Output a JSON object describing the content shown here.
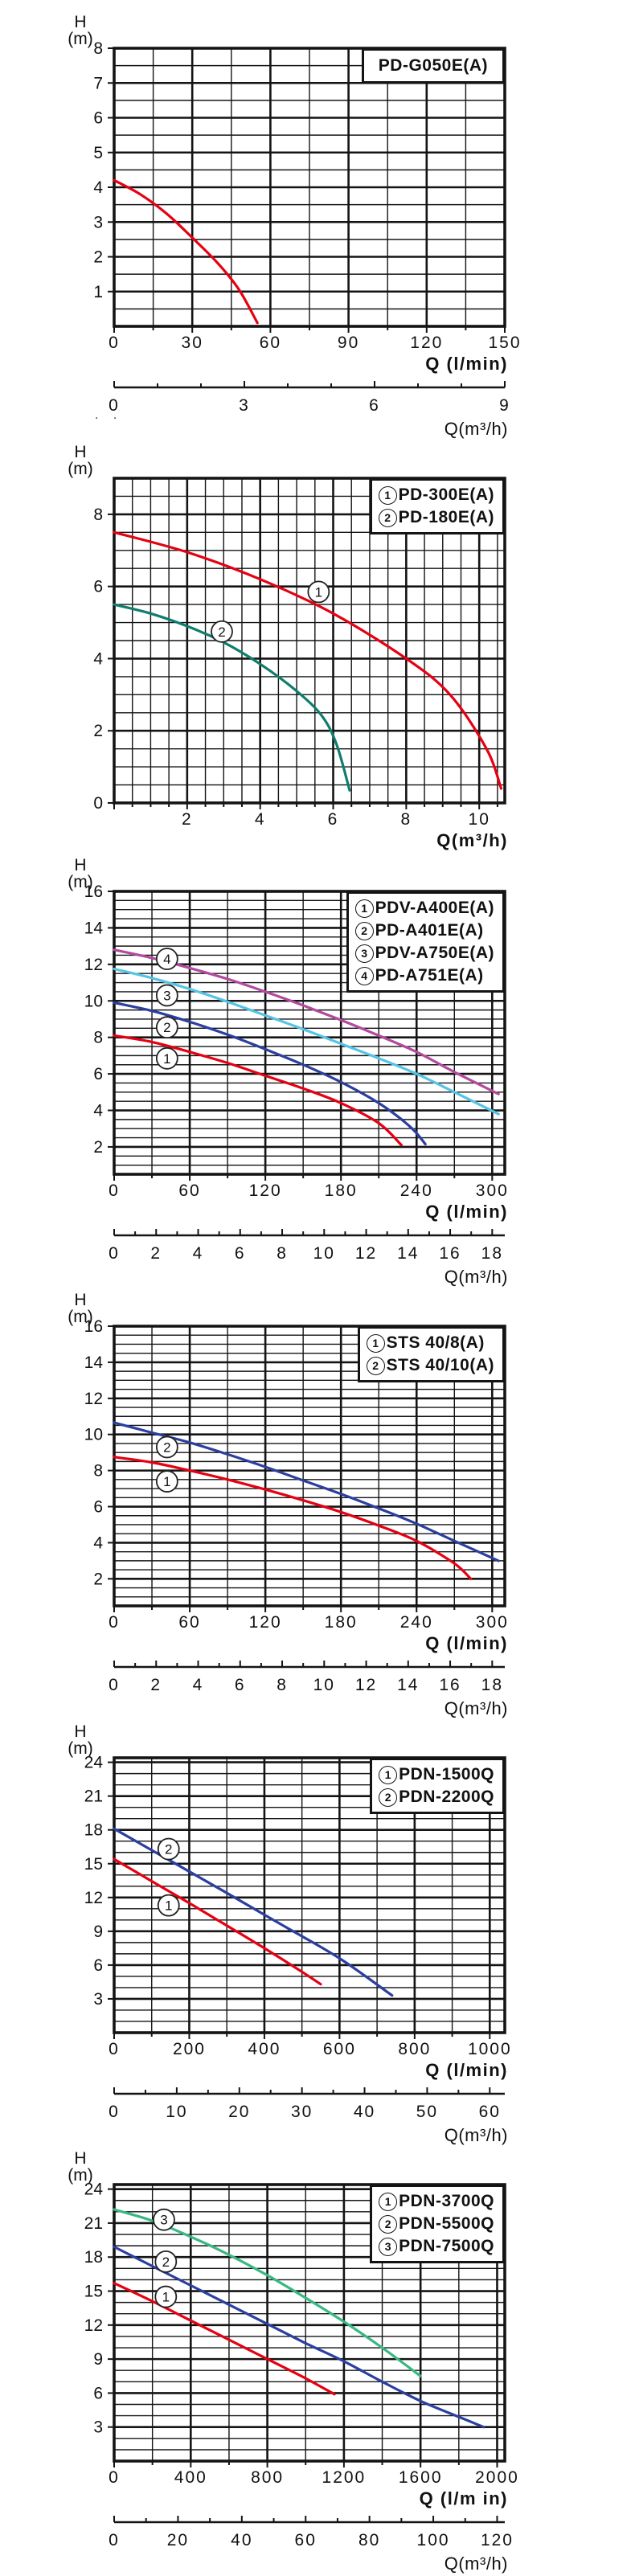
{
  "page": {
    "background": "#ffffff",
    "stray_marks": ". .",
    "grid_color": "#141414",
    "text_color": "#111111"
  },
  "chart_data": [
    {
      "type": "line",
      "id": "pd-g050e",
      "title": "PD-G050E(A)",
      "legend": null,
      "y_axis": {
        "name": "H",
        "unit": "(m)",
        "min": 0,
        "max": 8,
        "minor": 0.5,
        "labels": [
          8,
          7,
          6,
          5,
          4,
          3,
          2,
          1
        ]
      },
      "x_axis": {
        "name": "Q (l/min)",
        "min": 0,
        "max": 150,
        "minor": 15,
        "labels": [
          0,
          30,
          60,
          90,
          120,
          150
        ]
      },
      "x_axis2": {
        "name": "Q(m³/h)",
        "max": 9,
        "minor": 1,
        "labels": [
          0,
          3,
          6,
          9
        ]
      },
      "series": [
        {
          "label": "PD-G050E(A)",
          "color": "#e60012",
          "points": [
            [
              0,
              4.2
            ],
            [
              10,
              3.8
            ],
            [
              20,
              3.25
            ],
            [
              30,
              2.55
            ],
            [
              40,
              1.8
            ],
            [
              48,
              1.05
            ],
            [
              55,
              0.1
            ]
          ]
        }
      ],
      "curve_labels": []
    },
    {
      "type": "line",
      "id": "pd-300e-180e",
      "title": null,
      "legend": [
        {
          "num": "1",
          "label": "PD-300E(A)"
        },
        {
          "num": "2",
          "label": "PD-180E(A)"
        }
      ],
      "y_axis": {
        "name": "H",
        "unit": "(m)",
        "min": 0,
        "max": 9,
        "minor": 0.5,
        "labels": [
          8,
          6,
          4,
          2,
          0
        ]
      },
      "x_axis": {
        "name": "Q(m³/h)",
        "min": 0,
        "max": 10.7,
        "minor": 0.5,
        "labels": [
          2,
          4,
          6,
          8,
          10
        ]
      },
      "x_axis2": null,
      "series": [
        {
          "label": "PD-300E(A)",
          "color": "#e60012",
          "points": [
            [
              0,
              7.5
            ],
            [
              2,
              6.95
            ],
            [
              4,
              6.2
            ],
            [
              6,
              5.25
            ],
            [
              8,
              4.0
            ],
            [
              9.2,
              3.0
            ],
            [
              10.2,
              1.5
            ],
            [
              10.6,
              0.4
            ]
          ]
        },
        {
          "label": "PD-180E(A)",
          "color": "#0f7d6c",
          "points": [
            [
              0,
              5.5
            ],
            [
              1,
              5.25
            ],
            [
              2,
              4.9
            ],
            [
              3,
              4.45
            ],
            [
              4,
              3.85
            ],
            [
              5,
              3.1
            ],
            [
              5.7,
              2.4
            ],
            [
              6.1,
              1.6
            ],
            [
              6.45,
              0.35
            ]
          ]
        }
      ],
      "curve_labels": [
        {
          "num": "1",
          "x": 5.6,
          "y": 5.85
        },
        {
          "num": "2",
          "x": 2.95,
          "y": 4.75
        }
      ]
    },
    {
      "type": "line",
      "id": "pdv-a400-a751",
      "title": null,
      "legend": [
        {
          "num": "1",
          "label": "PDV-A400E(A)"
        },
        {
          "num": "2",
          "label": "PD-A401E(A)"
        },
        {
          "num": "3",
          "label": "PDV-A750E(A)"
        },
        {
          "num": "4",
          "label": "PD-A751E(A)"
        }
      ],
      "y_axis": {
        "name": "H",
        "unit": "(m)",
        "min": 0.5,
        "max": 16,
        "minor": 0.5,
        "labels": [
          16,
          14,
          12,
          10,
          8,
          6,
          4,
          2
        ]
      },
      "x_axis": {
        "name": "Q (l/min)",
        "min": 0,
        "max": 310,
        "minor": 30,
        "labels": [
          0,
          60,
          120,
          180,
          240,
          300
        ]
      },
      "x_axis2": {
        "name": "Q(m³/h)",
        "max": 18.6,
        "minor": 1,
        "labels": [
          0,
          2,
          4,
          6,
          8,
          10,
          12,
          14,
          16,
          18
        ]
      },
      "series": [
        {
          "label": "PDV-A400E(A)",
          "color": "#e60012",
          "points": [
            [
              0,
              8.1
            ],
            [
              30,
              7.75
            ],
            [
              60,
              7.2
            ],
            [
              90,
              6.6
            ],
            [
              120,
              5.9
            ],
            [
              150,
              5.2
            ],
            [
              180,
              4.4
            ],
            [
              210,
              3.3
            ],
            [
              228,
              2.1
            ]
          ]
        },
        {
          "label": "PD-A401E(A)",
          "color": "#2b3fa0",
          "points": [
            [
              0,
              9.9
            ],
            [
              30,
              9.45
            ],
            [
              60,
              8.85
            ],
            [
              90,
              8.15
            ],
            [
              120,
              7.35
            ],
            [
              150,
              6.5
            ],
            [
              180,
              5.55
            ],
            [
              210,
              4.4
            ],
            [
              235,
              3.1
            ],
            [
              247,
              2.15
            ]
          ]
        },
        {
          "label": "PDV-A750E(A)",
          "color": "#55c4e4",
          "points": [
            [
              0,
              11.75
            ],
            [
              30,
              11.25
            ],
            [
              60,
              10.65
            ],
            [
              90,
              9.95
            ],
            [
              120,
              9.2
            ],
            [
              150,
              8.45
            ],
            [
              180,
              7.65
            ],
            [
              210,
              6.85
            ],
            [
              240,
              6.0
            ],
            [
              270,
              5.0
            ],
            [
              305,
              3.8
            ]
          ]
        },
        {
          "label": "PD-A751E(A)",
          "color": "#b34a9f",
          "points": [
            [
              0,
              12.8
            ],
            [
              30,
              12.35
            ],
            [
              60,
              11.8
            ],
            [
              90,
              11.2
            ],
            [
              120,
              10.5
            ],
            [
              150,
              9.75
            ],
            [
              180,
              8.95
            ],
            [
              210,
              8.1
            ],
            [
              240,
              7.2
            ],
            [
              270,
              6.1
            ],
            [
              305,
              4.9
            ]
          ]
        }
      ],
      "curve_labels": [
        {
          "num": "1",
          "x": 42,
          "y": 6.85
        },
        {
          "num": "2",
          "x": 42,
          "y": 8.55
        },
        {
          "num": "3",
          "x": 42,
          "y": 10.3
        },
        {
          "num": "4",
          "x": 42,
          "y": 12.3
        }
      ]
    },
    {
      "type": "line",
      "id": "sts-40",
      "title": null,
      "legend": [
        {
          "num": "1",
          "label": "STS 40/8(A)"
        },
        {
          "num": "2",
          "label": "STS 40/10(A)"
        }
      ],
      "y_axis": {
        "name": "H",
        "unit": "(m)",
        "min": 0.5,
        "max": 16,
        "minor": 0.5,
        "labels": [
          16,
          14,
          12,
          10,
          8,
          6,
          4,
          2
        ]
      },
      "x_axis": {
        "name": "Q (l/min)",
        "min": 0,
        "max": 310,
        "minor": 30,
        "labels": [
          0,
          60,
          120,
          180,
          240,
          300
        ]
      },
      "x_axis2": {
        "name": "Q(m³/h)",
        "max": 18.6,
        "minor": 1,
        "labels": [
          0,
          2,
          4,
          6,
          8,
          10,
          12,
          14,
          16,
          18
        ]
      },
      "series": [
        {
          "label": "STS 40/8(A)",
          "color": "#e60012",
          "points": [
            [
              0,
              8.75
            ],
            [
              30,
              8.45
            ],
            [
              60,
              8.0
            ],
            [
              90,
              7.5
            ],
            [
              120,
              6.95
            ],
            [
              150,
              6.35
            ],
            [
              180,
              5.7
            ],
            [
              210,
              4.95
            ],
            [
              240,
              4.1
            ],
            [
              270,
              2.85
            ],
            [
              283,
              2.0
            ]
          ]
        },
        {
          "label": "STS 40/10(A)",
          "color": "#2b3fa0",
          "points": [
            [
              0,
              10.65
            ],
            [
              30,
              10.1
            ],
            [
              60,
              9.55
            ],
            [
              90,
              8.9
            ],
            [
              120,
              8.2
            ],
            [
              150,
              7.45
            ],
            [
              180,
              6.7
            ],
            [
              210,
              5.9
            ],
            [
              240,
              5.05
            ],
            [
              270,
              4.1
            ],
            [
              305,
              3.0
            ]
          ]
        }
      ],
      "curve_labels": [
        {
          "num": "1",
          "x": 42,
          "y": 7.4
        },
        {
          "num": "2",
          "x": 42,
          "y": 9.3
        }
      ]
    },
    {
      "type": "line",
      "id": "pdn-1500-2200",
      "title": null,
      "legend": [
        {
          "num": "1",
          "label": "PDN-1500Q"
        },
        {
          "num": "2",
          "label": "PDN-2200Q"
        }
      ],
      "y_axis": {
        "name": "H",
        "unit": "(m)",
        "min": 0,
        "max": 24.4,
        "minor": 1,
        "labels": [
          24,
          21,
          18,
          15,
          12,
          9,
          6,
          3
        ]
      },
      "x_axis": {
        "name": "Q (l/min)",
        "min": 0,
        "max": 1040,
        "minor": 100,
        "labels": [
          0,
          200,
          400,
          600,
          800,
          1000
        ]
      },
      "x_axis2": {
        "name": "Q(m³/h)",
        "max": 62.4,
        "minor": 5,
        "labels": [
          0,
          10,
          20,
          30,
          40,
          50,
          60
        ]
      },
      "series": [
        {
          "label": "PDN-1500Q",
          "color": "#e60012",
          "points": [
            [
              0,
              15.4
            ],
            [
              100,
              13.45
            ],
            [
              200,
              11.5
            ],
            [
              300,
              9.5
            ],
            [
              400,
              7.5
            ],
            [
              500,
              5.4
            ],
            [
              550,
              4.3
            ]
          ]
        },
        {
          "label": "PDN-2200Q",
          "color": "#2b3fa0",
          "points": [
            [
              0,
              18.1
            ],
            [
              150,
              15.25
            ],
            [
              300,
              12.4
            ],
            [
              450,
              9.5
            ],
            [
              600,
              6.6
            ],
            [
              740,
              3.3
            ]
          ]
        }
      ],
      "curve_labels": [
        {
          "num": "1",
          "x": 145,
          "y": 11.3
        },
        {
          "num": "2",
          "x": 145,
          "y": 16.3
        }
      ]
    },
    {
      "type": "line",
      "id": "pdn-3700-7500",
      "title": null,
      "legend": [
        {
          "num": "1",
          "label": "PDN-3700Q"
        },
        {
          "num": "2",
          "label": "PDN-5500Q"
        },
        {
          "num": "3",
          "label": "PDN-7500Q"
        }
      ],
      "y_axis": {
        "name": "H",
        "unit": "(m)",
        "min": 0,
        "max": 24.4,
        "minor": 1,
        "labels": [
          24,
          21,
          18,
          15,
          12,
          9,
          6,
          3
        ]
      },
      "x_axis": {
        "name": "Q (l/m in)",
        "min": 0,
        "max": 2040,
        "minor": 200,
        "labels": [
          0,
          400,
          800,
          1200,
          1600,
          2000
        ]
      },
      "x_axis2": {
        "name": "Q(m³/h)",
        "max": 122.4,
        "minor": 10,
        "labels": [
          0,
          20,
          40,
          60,
          80,
          100,
          120
        ]
      },
      "series": [
        {
          "label": "PDN-3700Q",
          "color": "#e60012",
          "points": [
            [
              0,
              15.7
            ],
            [
              200,
              14.1
            ],
            [
              400,
              12.4
            ],
            [
              600,
              10.7
            ],
            [
              800,
              9.0
            ],
            [
              1000,
              7.3
            ],
            [
              1150,
              5.9
            ]
          ]
        },
        {
          "label": "PDN-5500Q",
          "color": "#2b3fa0",
          "points": [
            [
              0,
              18.9
            ],
            [
              200,
              17.2
            ],
            [
              400,
              15.5
            ],
            [
              600,
              13.8
            ],
            [
              800,
              12.1
            ],
            [
              1000,
              10.4
            ],
            [
              1200,
              8.8
            ],
            [
              1400,
              7.0
            ],
            [
              1600,
              5.3
            ],
            [
              1800,
              3.9
            ],
            [
              1930,
              3.0
            ]
          ]
        },
        {
          "label": "PDN-7500Q",
          "color": "#38b982",
          "points": [
            [
              0,
              22.2
            ],
            [
              200,
              21.2
            ],
            [
              400,
              19.8
            ],
            [
              600,
              18.2
            ],
            [
              800,
              16.4
            ],
            [
              1000,
              14.4
            ],
            [
              1200,
              12.3
            ],
            [
              1400,
              10.0
            ],
            [
              1600,
              7.5
            ]
          ]
        }
      ],
      "curve_labels": [
        {
          "num": "1",
          "x": 270,
          "y": 14.5
        },
        {
          "num": "2",
          "x": 270,
          "y": 17.6
        },
        {
          "num": "3",
          "x": 260,
          "y": 21.3
        }
      ]
    }
  ]
}
